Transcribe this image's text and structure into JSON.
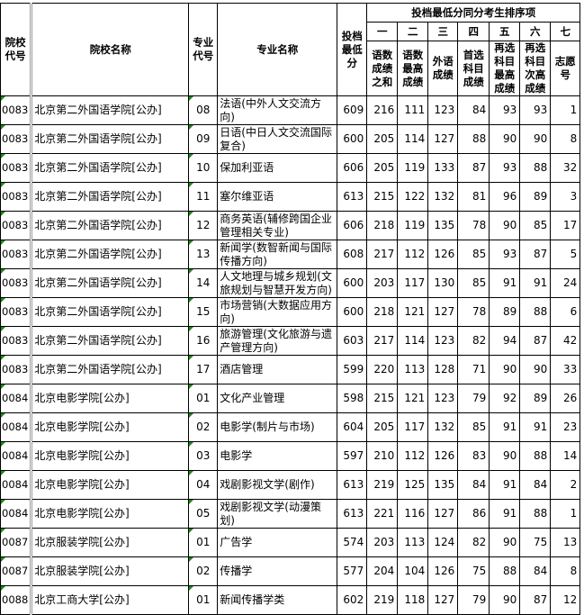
{
  "headers": {
    "school_code": "院校代号",
    "school_name": "院校名称",
    "major_code": "专业代号",
    "major_name": "专业名称",
    "min_score": "投档最低分",
    "tiebreak_title": "投档最低分同分考生排序项",
    "order": [
      "一",
      "二",
      "三",
      "四",
      "五",
      "六",
      "七"
    ],
    "tiebreak": [
      "语数成绩之和",
      "语数最高成绩",
      "外语成绩",
      "首选科目成绩",
      "再选科目最高成绩",
      "再选科目次高成绩",
      "志愿号"
    ]
  },
  "rows": [
    [
      "0083",
      "北京第二外国语学院[公办]",
      "08",
      "法语(中外人文交流方向)",
      "609",
      "216",
      "111",
      "123",
      "84",
      "93",
      "93",
      "1"
    ],
    [
      "0083",
      "北京第二外国语学院[公办]",
      "09",
      "日语(中日人文交流国际复合)",
      "600",
      "205",
      "114",
      "127",
      "88",
      "90",
      "90",
      "8"
    ],
    [
      "0083",
      "北京第二外国语学院[公办]",
      "10",
      "保加利亚语",
      "606",
      "205",
      "119",
      "133",
      "87",
      "93",
      "88",
      "32"
    ],
    [
      "0083",
      "北京第二外国语学院[公办]",
      "11",
      "塞尔维亚语",
      "613",
      "215",
      "122",
      "132",
      "81",
      "96",
      "89",
      "3"
    ],
    [
      "0083",
      "北京第二外国语学院[公办]",
      "12",
      "商务英语(辅修跨国企业管理相关专业)",
      "606",
      "218",
      "119",
      "135",
      "78",
      "90",
      "85",
      "17"
    ],
    [
      "0083",
      "北京第二外国语学院[公办]",
      "13",
      "新闻学(数智新闻与国际传播方向)",
      "608",
      "217",
      "112",
      "126",
      "85",
      "93",
      "87",
      "5"
    ],
    [
      "0083",
      "北京第二外国语学院[公办]",
      "14",
      "人文地理与城乡规划(文旅规划与智慧开发方向)",
      "600",
      "203",
      "117",
      "130",
      "85",
      "91",
      "91",
      "24"
    ],
    [
      "0083",
      "北京第二外国语学院[公办]",
      "15",
      "市场营销(大数据应用方向)",
      "600",
      "218",
      "121",
      "127",
      "78",
      "89",
      "88",
      "6"
    ],
    [
      "0083",
      "北京第二外国语学院[公办]",
      "16",
      "旅游管理(文化旅游与遗产管理方向)",
      "603",
      "217",
      "114",
      "123",
      "82",
      "94",
      "87",
      "42"
    ],
    [
      "0083",
      "北京第二外国语学院[公办]",
      "17",
      "酒店管理",
      "599",
      "220",
      "113",
      "128",
      "71",
      "90",
      "90",
      "33"
    ],
    [
      "0084",
      "北京电影学院[公办]",
      "01",
      "文化产业管理",
      "598",
      "215",
      "121",
      "123",
      "79",
      "92",
      "89",
      "26"
    ],
    [
      "0084",
      "北京电影学院[公办]",
      "02",
      "电影学(制片与市场)",
      "604",
      "205",
      "117",
      "132",
      "85",
      "91",
      "91",
      "23"
    ],
    [
      "0084",
      "北京电影学院[公办]",
      "03",
      "电影学",
      "597",
      "210",
      "112",
      "126",
      "83",
      "90",
      "88",
      "14"
    ],
    [
      "0084",
      "北京电影学院[公办]",
      "04",
      "戏剧影视文学(剧作)",
      "613",
      "219",
      "125",
      "135",
      "84",
      "91",
      "84",
      "2"
    ],
    [
      "0084",
      "北京电影学院[公办]",
      "05",
      "戏剧影视文学(动漫策划)",
      "613",
      "221",
      "116",
      "127",
      "86",
      "91",
      "88",
      "1"
    ],
    [
      "0087",
      "北京服装学院[公办]",
      "01",
      "广告学",
      "574",
      "203",
      "113",
      "124",
      "82",
      "90",
      "75",
      "13"
    ],
    [
      "0087",
      "北京服装学院[公办]",
      "02",
      "传播学",
      "577",
      "204",
      "104",
      "126",
      "75",
      "88",
      "84",
      "8"
    ],
    [
      "0088",
      "北京工商大学[公办]",
      "01",
      "新闻传播学类",
      "602",
      "219",
      "118",
      "127",
      "79",
      "90",
      "87",
      "12"
    ]
  ]
}
